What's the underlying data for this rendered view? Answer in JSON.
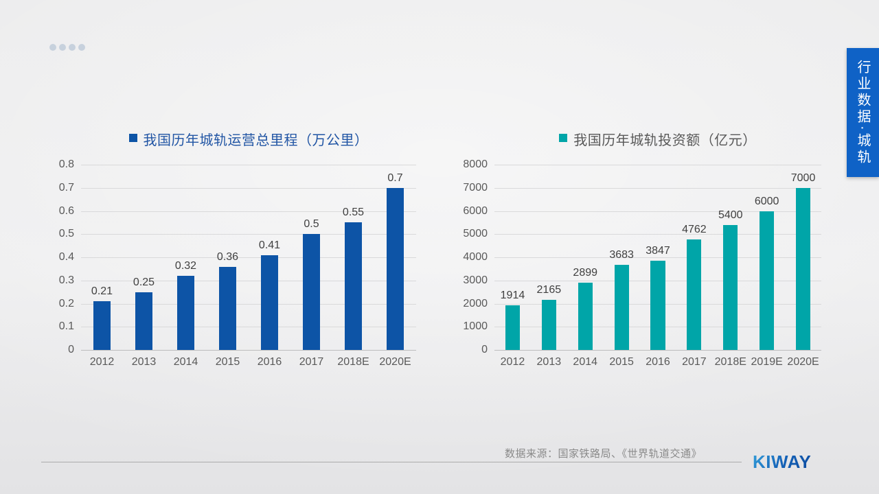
{
  "slide": {
    "side_tab": {
      "label": "行业数据·城轨",
      "bg_color": "#0F62C6",
      "text_color": "#FFFFFF"
    },
    "footer": {
      "source": "数据来源：国家铁路局、《世界轨道交通》",
      "logo": "KIWAY",
      "logo_color": "#1565C0"
    }
  },
  "chart_data": [
    {
      "type": "bar",
      "title": "我国历年城轨运营总里程（万公里）",
      "categories": [
        "2012",
        "2013",
        "2014",
        "2015",
        "2016",
        "2017",
        "2018E",
        "2020E"
      ],
      "values": [
        0.21,
        0.25,
        0.32,
        0.36,
        0.41,
        0.5,
        0.55,
        0.7
      ],
      "ylim": [
        0,
        0.8
      ],
      "ytick_step": 0.1,
      "grid": true,
      "legend_position": "top",
      "bar_color": "#0D54A6",
      "title_color": "#2155A4",
      "xlabel": "",
      "ylabel": ""
    },
    {
      "type": "bar",
      "title": "我国历年城轨投资额（亿元）",
      "categories": [
        "2012",
        "2013",
        "2014",
        "2015",
        "2016",
        "2017",
        "2018E",
        "2019E",
        "2020E"
      ],
      "values": [
        1914,
        2165,
        2899,
        3683,
        3847,
        4762,
        5400,
        6000,
        7000
      ],
      "ylim": [
        0,
        8000
      ],
      "ytick_step": 1000,
      "grid": true,
      "legend_position": "top",
      "bar_color": "#00A5A8",
      "title_color": "#595959",
      "xlabel": "",
      "ylabel": ""
    }
  ]
}
